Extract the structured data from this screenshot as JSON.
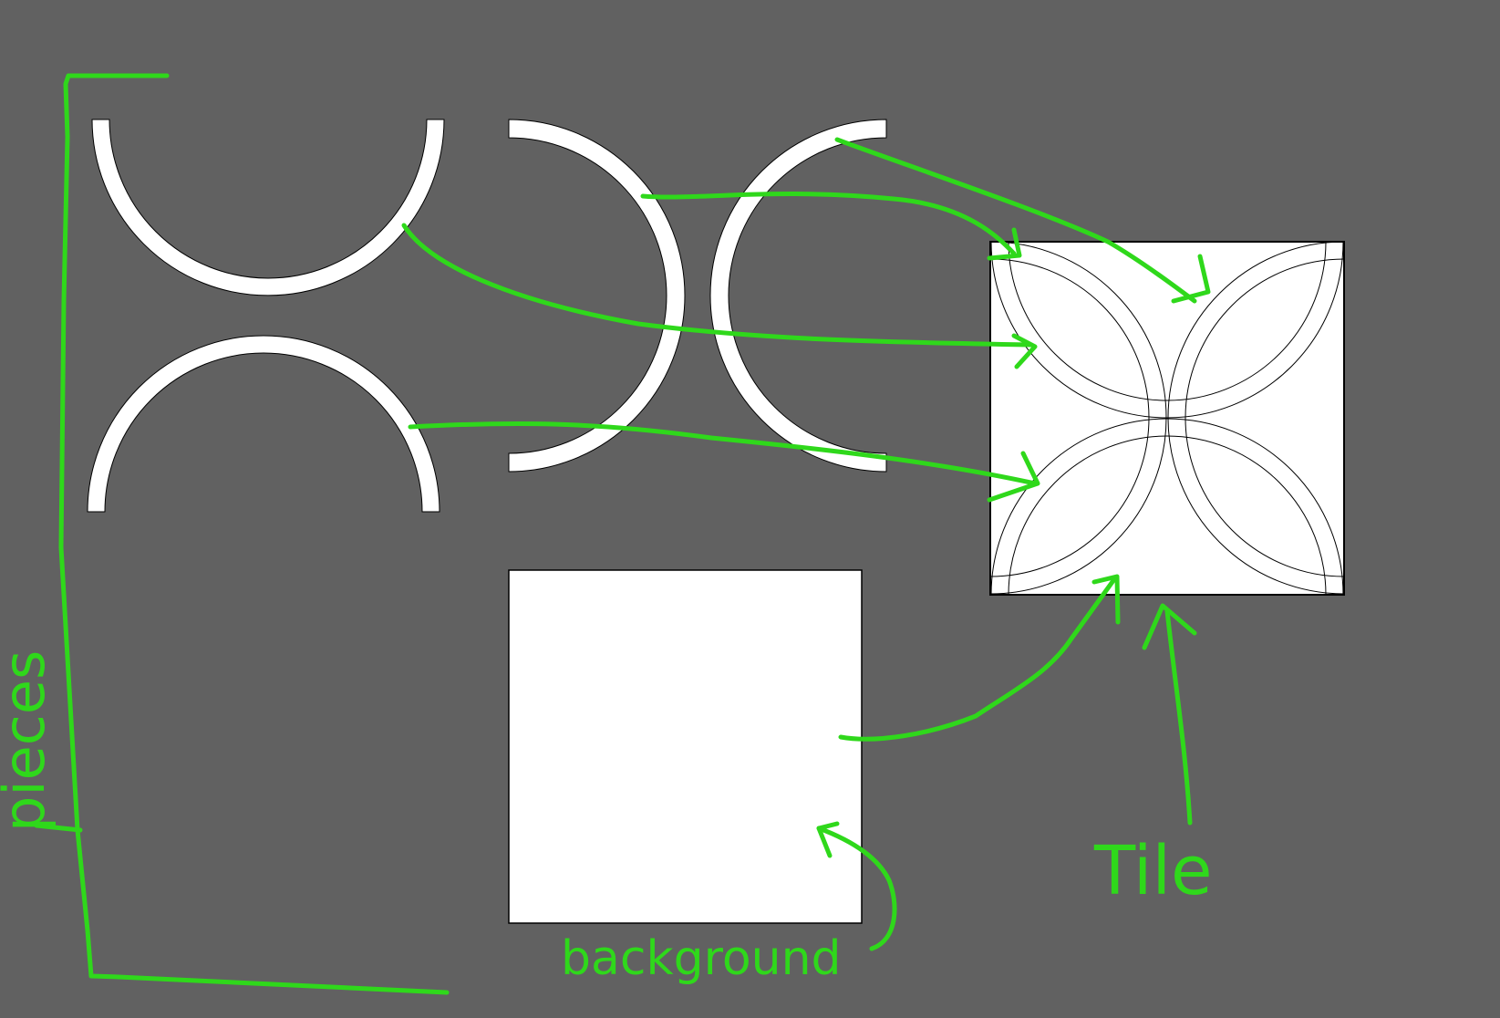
{
  "canvas": {
    "background": "#616161"
  },
  "colors": {
    "ink": "#2fd81b",
    "piece_fill": "#ffffff",
    "piece_stroke": "#000000"
  },
  "labels": {
    "pieces": "pieces",
    "background": "background",
    "tile": "Tile"
  },
  "pieces": [
    {
      "name": "half-ring-opening-up"
    },
    {
      "name": "half-ring-opening-down"
    },
    {
      "name": "half-ring-opening-left"
    },
    {
      "name": "half-ring-opening-right"
    }
  ],
  "background_piece": {
    "name": "white-square"
  },
  "tile": {
    "name": "four-petal-tile"
  }
}
